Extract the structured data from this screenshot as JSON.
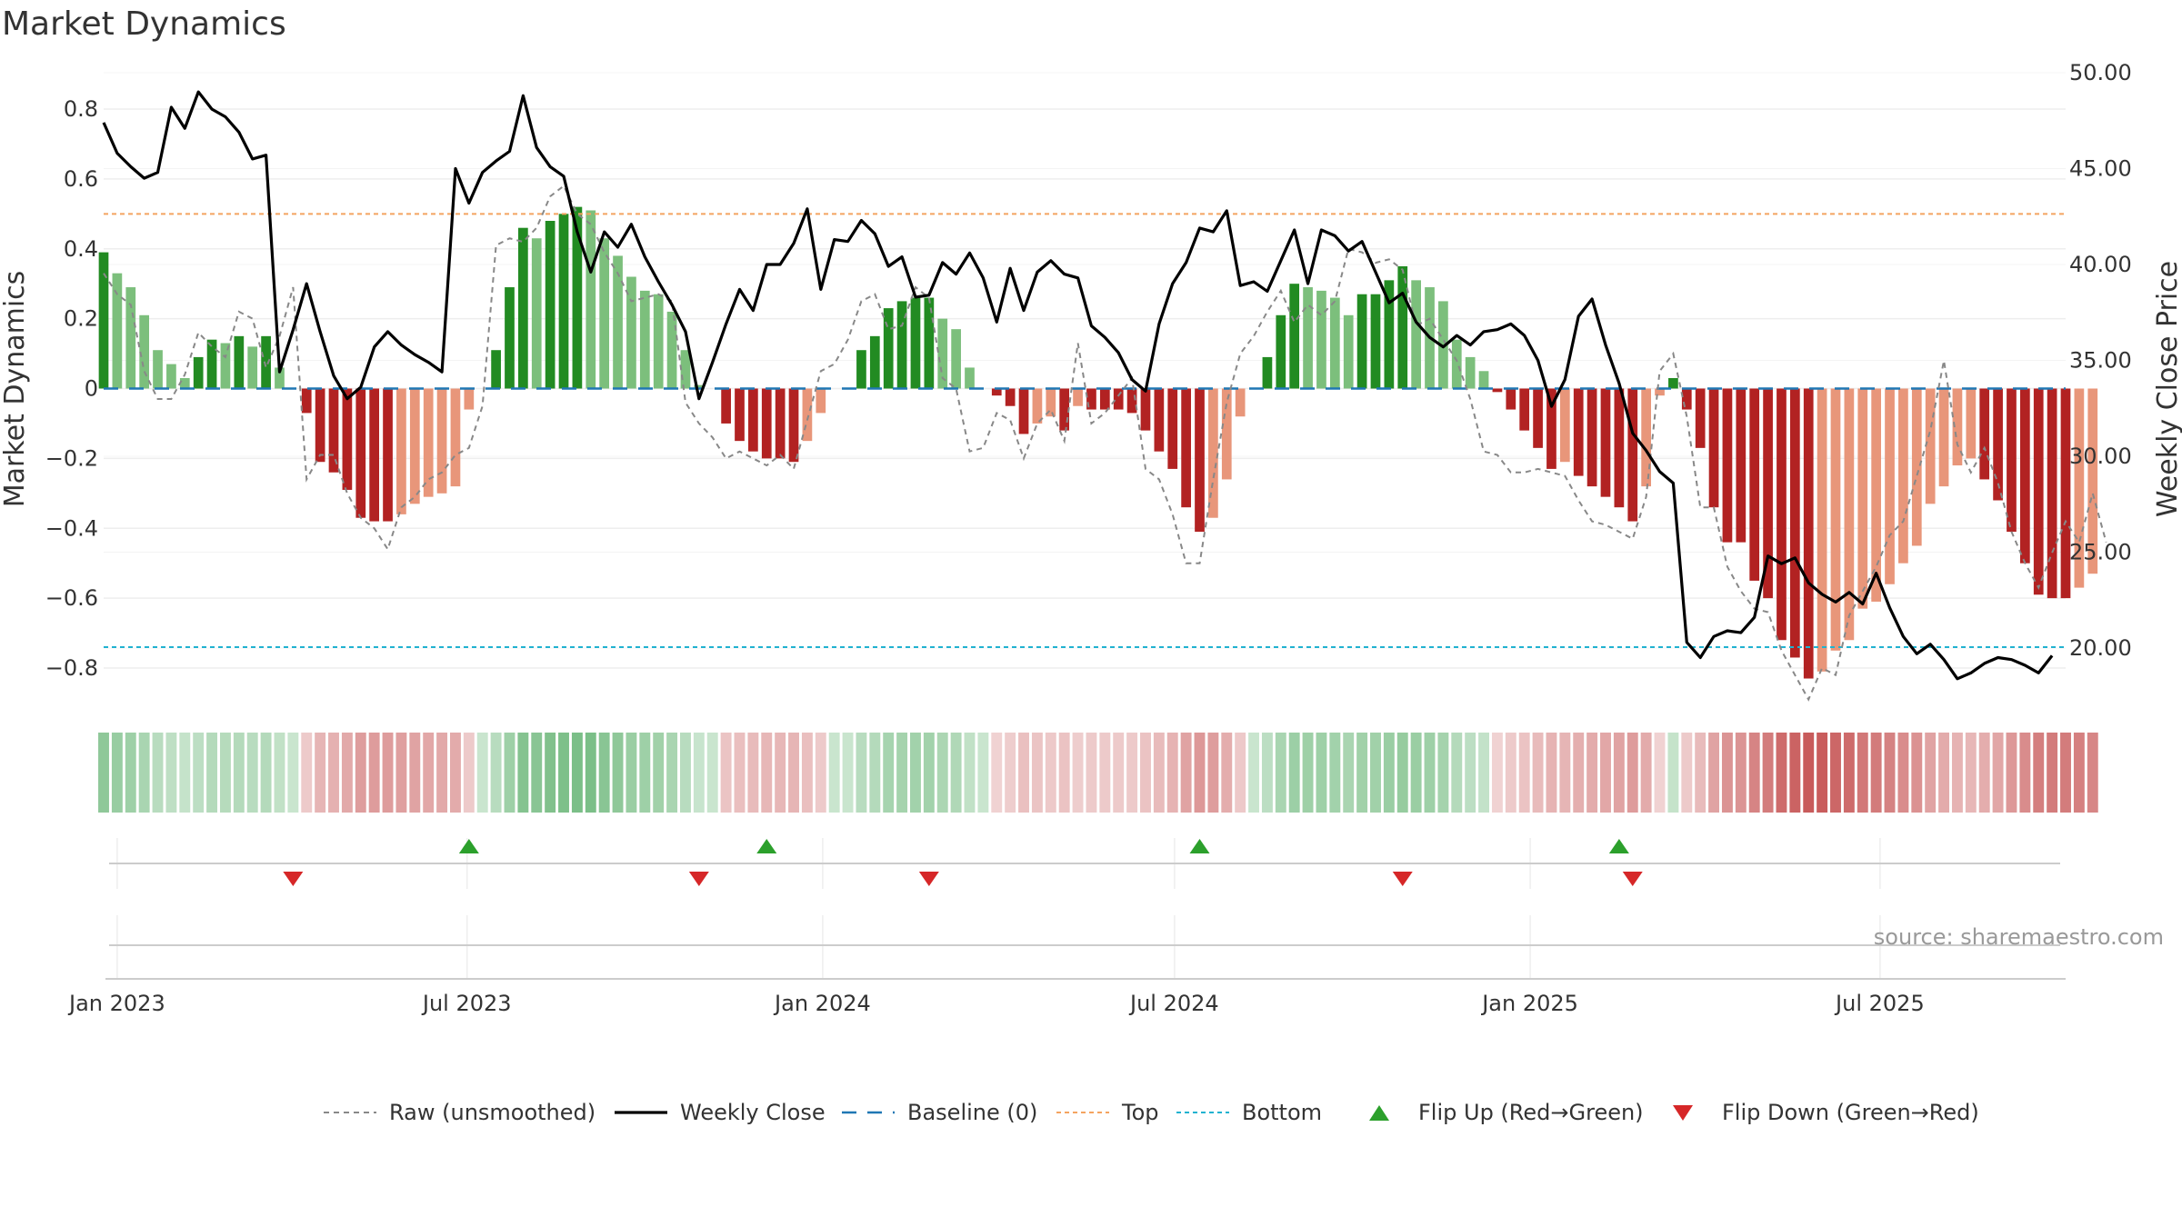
{
  "chart_data": {
    "type": "bar",
    "title": "Market Dynamics",
    "ylabel_left": "Market Dynamics",
    "ylabel_right": "Weekly Close Price",
    "source": "source: sharemaestro.com",
    "ylim_left": [
      -0.9,
      0.9
    ],
    "yticks_left": [
      0.8,
      0.6,
      0.4,
      0.2,
      0,
      -0.2,
      -0.4,
      -0.6,
      -0.8
    ],
    "ytick_labels_left": [
      "0.8",
      "0.6",
      "0.4",
      "0.2",
      "0",
      "−0.2",
      "−0.4",
      "−0.6",
      "−0.8"
    ],
    "ylim_right": [
      16.5,
      50.5
    ],
    "yticks_right": [
      50,
      45,
      40,
      35,
      30,
      25,
      20
    ],
    "ytick_labels_right": [
      "50.00",
      "45.00",
      "40.00",
      "35.00",
      "30.00",
      "25.00",
      "20.00"
    ],
    "x_start": "2022-12-25",
    "x_end": "2025-10-05",
    "xticks": [
      "2023-01-01",
      "2023-07-01",
      "2024-01-01",
      "2024-07-01",
      "2025-01-01",
      "2025-07-01"
    ],
    "xtick_labels": [
      "Jan 2023",
      "Jul 2023",
      "Jan 2024",
      "Jul 2024",
      "Jan 2025",
      "Jul 2025"
    ],
    "first_week": "2022-12-25",
    "top_level": 0.5,
    "bottom_level": -0.74,
    "baseline": 0,
    "grid": true,
    "legend_position": "bottom-center",
    "colors": {
      "bull_strong": "#228b22",
      "bull_weak": "#7cbf7c",
      "bear_strong": "#b22222",
      "bear_weak": "#e8967a",
      "close": "#000000",
      "raw": "#888888",
      "baseline": "#1f77b4",
      "top": "#f4a460",
      "bottom": "#20b2d0",
      "flip_up": "#2ca02c",
      "flip_down": "#d62728"
    },
    "series": [
      {
        "name": "Market Dynamics",
        "values": [
          0.39,
          0.33,
          0.29,
          0.21,
          0.11,
          0.07,
          0.03,
          0.09,
          0.14,
          0.13,
          0.15,
          0.12,
          0.15,
          0.06,
          0,
          -0.07,
          -0.21,
          -0.24,
          -0.29,
          -0.37,
          -0.38,
          -0.38,
          -0.36,
          -0.33,
          -0.31,
          -0.3,
          -0.28,
          -0.06,
          0,
          0.11,
          0.29,
          0.46,
          0.43,
          0.48,
          0.5,
          0.52,
          0.51,
          0.43,
          0.38,
          0.32,
          0.28,
          0.27,
          0.22,
          0.11,
          0.01,
          0,
          -0.1,
          -0.15,
          -0.18,
          -0.2,
          -0.2,
          -0.21,
          -0.15,
          -0.07,
          0,
          0,
          0.11,
          0.15,
          0.23,
          0.25,
          0.26,
          0.26,
          0.2,
          0.17,
          0.06,
          0,
          -0.02,
          -0.05,
          -0.13,
          -0.1,
          -0.08,
          -0.12,
          -0.05,
          -0.06,
          -0.06,
          -0.06,
          -0.07,
          -0.12,
          -0.18,
          -0.23,
          -0.34,
          -0.41,
          -0.37,
          -0.26,
          -0.08,
          0,
          0.09,
          0.21,
          0.3,
          0.29,
          0.28,
          0.26,
          0.21,
          0.27,
          0.27,
          0.31,
          0.35,
          0.31,
          0.29,
          0.25,
          0.14,
          0.09,
          0.05,
          -0.01,
          -0.06,
          -0.12,
          -0.17,
          -0.23,
          -0.21,
          -0.25,
          -0.28,
          -0.31,
          -0.34,
          -0.38,
          -0.28,
          -0.02,
          0.03,
          -0.06,
          -0.17,
          -0.34,
          -0.44,
          -0.44,
          -0.55,
          -0.6,
          -0.72,
          -0.77,
          -0.83,
          -0.81,
          -0.75,
          -0.72,
          -0.63,
          -0.61,
          -0.56,
          -0.5,
          -0.45,
          -0.33,
          -0.28,
          -0.22,
          -0.2,
          -0.26,
          -0.32,
          -0.41,
          -0.5,
          -0.59,
          -0.6,
          -0.6,
          -0.57,
          -0.53
        ]
      },
      {
        "name": "Raw (unsmoothed)",
        "values": [
          0.33,
          0.27,
          0.24,
          0.05,
          -0.03,
          -0.03,
          0.04,
          0.16,
          0.12,
          0.09,
          0.22,
          0.2,
          0.06,
          0.15,
          0.29,
          -0.26,
          -0.19,
          -0.19,
          -0.3,
          -0.37,
          -0.4,
          -0.46,
          -0.34,
          -0.31,
          -0.26,
          -0.24,
          -0.19,
          -0.17,
          -0.05,
          0.41,
          0.43,
          0.42,
          0.46,
          0.55,
          0.58,
          0.5,
          0.47,
          0.39,
          0.33,
          0.25,
          0.26,
          0.27,
          0.25,
          -0.04,
          -0.1,
          -0.14,
          -0.2,
          -0.18,
          -0.2,
          -0.22,
          -0.19,
          -0.23,
          -0.09,
          0.05,
          0.07,
          0.14,
          0.25,
          0.27,
          0.17,
          0.18,
          0.29,
          0.26,
          0.03,
          0,
          -0.18,
          -0.17,
          -0.07,
          -0.09,
          -0.2,
          -0.1,
          -0.06,
          -0.15,
          0.13,
          -0.1,
          -0.07,
          -0.02,
          0.03,
          -0.23,
          -0.26,
          -0.36,
          -0.5,
          -0.5,
          -0.26,
          -0.04,
          0.1,
          0.15,
          0.22,
          0.28,
          0.19,
          0.24,
          0.21,
          0.25,
          0.4,
          0.39,
          0.36,
          0.37,
          0.34,
          0.18,
          0.2,
          0.14,
          0.08,
          -0.03,
          -0.18,
          -0.19,
          -0.24,
          -0.24,
          -0.23,
          -0.24,
          -0.25,
          -0.32,
          -0.38,
          -0.39,
          -0.41,
          -0.43,
          -0.31,
          0.05,
          0.1,
          -0.08,
          -0.34,
          -0.34,
          -0.51,
          -0.58,
          -0.63,
          -0.64,
          -0.75,
          -0.82,
          -0.89,
          -0.8,
          -0.82,
          -0.65,
          -0.58,
          -0.51,
          -0.42,
          -0.38,
          -0.25,
          -0.12,
          0.08,
          -0.16,
          -0.24,
          -0.17,
          -0.27,
          -0.41,
          -0.5,
          -0.57,
          -0.47,
          -0.38,
          -0.44,
          -0.3,
          -0.44
        ]
      },
      {
        "name": "Weekly Close",
        "values": [
          47.4,
          45.8,
          45.1,
          44.5,
          44.8,
          48.2,
          47.1,
          49.0,
          48.1,
          47.7,
          46.9,
          45.5,
          45.7,
          34.4,
          36.6,
          39.0,
          36.5,
          34.2,
          33.0,
          33.6,
          35.7,
          36.5,
          35.8,
          35.3,
          34.9,
          34.4,
          45.0,
          43.2,
          44.8,
          45.4,
          45.9,
          48.8,
          46.1,
          45.1,
          44.6,
          41.7,
          39.6,
          41.7,
          40.9,
          42.1,
          40.4,
          39.1,
          37.9,
          36.5,
          33.0,
          34.9,
          36.9,
          38.7,
          37.6,
          40.0,
          40.0,
          41.1,
          42.9,
          38.7,
          41.3,
          41.2,
          42.3,
          41.6,
          39.9,
          40.4,
          38.3,
          38.4,
          40.1,
          39.5,
          40.6,
          39.3,
          37.0,
          39.8,
          37.6,
          39.6,
          40.2,
          39.5,
          39.3,
          36.8,
          36.2,
          35.4,
          34.0,
          33.4,
          36.9,
          39.0,
          40.1,
          41.9,
          41.7,
          42.8,
          38.9,
          39.1,
          38.6,
          40.2,
          41.8,
          39.0,
          41.8,
          41.5,
          40.7,
          41.2,
          39.6,
          38.0,
          38.5,
          37.0,
          36.2,
          35.7,
          36.3,
          35.8,
          36.5,
          36.6,
          36.9,
          36.3,
          35.0,
          32.6,
          34.0,
          37.3,
          38.2,
          35.8,
          33.8,
          31.2,
          30.3,
          29.2,
          28.6,
          20.3,
          19.5,
          20.6,
          20.9,
          20.8,
          21.6,
          24.8,
          24.4,
          24.7,
          23.4,
          22.8,
          22.4,
          22.9,
          22.3,
          23.9,
          22.1,
          20.6,
          19.7,
          20.2,
          19.4,
          18.4,
          18.7,
          19.2,
          19.5,
          19.4,
          19.1,
          18.7,
          19.6
        ]
      },
      {
        "name": "Baseline (0)"
      },
      {
        "name": "Top"
      },
      {
        "name": "Bottom"
      },
      {
        "name": "Flip Up (Red→Green)",
        "dates": [
          "2023-07-02",
          "2023-12-03",
          "2024-07-14",
          "2025-02-16"
        ]
      },
      {
        "name": "Flip Down (Green→Red)",
        "dates": [
          "2023-04-02",
          "2023-10-29",
          "2024-02-25",
          "2024-10-27",
          "2025-02-23"
        ]
      }
    ]
  }
}
